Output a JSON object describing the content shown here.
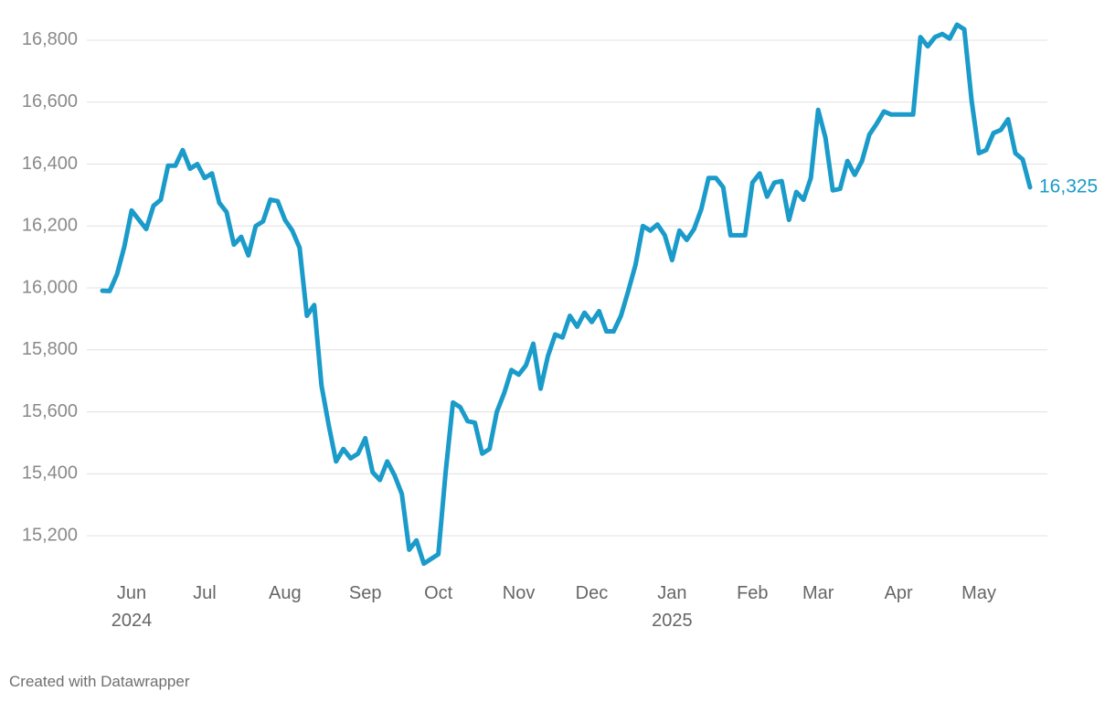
{
  "chart_data": {
    "type": "line",
    "color": "#1a9bc9",
    "grid": true,
    "source": "Created with Datawrapper",
    "ylim": [
      15100,
      16850
    ],
    "yticks": [
      {
        "value": 15200,
        "label": "15,200"
      },
      {
        "value": 15400,
        "label": "15,400"
      },
      {
        "value": 15600,
        "label": "15,600"
      },
      {
        "value": 15800,
        "label": "15,800"
      },
      {
        "value": 16000,
        "label": "16,000"
      },
      {
        "value": 16200,
        "label": "16,200"
      },
      {
        "value": 16400,
        "label": "16,400"
      },
      {
        "value": 16600,
        "label": "16,600"
      },
      {
        "value": 16800,
        "label": "16,800"
      }
    ],
    "categories": [
      null,
      null,
      null,
      null,
      "Jun 2024",
      null,
      null,
      null,
      null,
      null,
      null,
      null,
      null,
      null,
      "Jul",
      null,
      null,
      null,
      null,
      null,
      null,
      null,
      null,
      null,
      null,
      "Aug",
      null,
      null,
      null,
      null,
      null,
      null,
      null,
      null,
      null,
      null,
      "Sep",
      null,
      null,
      null,
      null,
      null,
      null,
      null,
      null,
      null,
      "Oct",
      null,
      null,
      null,
      null,
      null,
      null,
      null,
      null,
      null,
      null,
      "Nov",
      null,
      null,
      null,
      null,
      null,
      null,
      null,
      null,
      null,
      "Dec",
      null,
      null,
      null,
      null,
      null,
      null,
      null,
      null,
      null,
      null,
      "Jan 2025",
      null,
      null,
      null,
      null,
      null,
      null,
      null,
      null,
      null,
      null,
      "Feb",
      null,
      null,
      null,
      null,
      null,
      null,
      null,
      null,
      "Mar",
      null,
      null,
      null,
      null,
      null,
      null,
      null,
      null,
      null,
      null,
      "Apr",
      null,
      null,
      null,
      null,
      null,
      null,
      null,
      null,
      null,
      null,
      "May",
      null,
      null,
      null,
      null,
      null,
      null,
      null
    ],
    "values": [
      15991,
      15990,
      16044,
      16133,
      16250,
      16220,
      16190,
      16265,
      16285,
      16395,
      16395,
      16445,
      16385,
      16400,
      16355,
      16370,
      16275,
      16245,
      16140,
      16165,
      16105,
      16200,
      16215,
      16285,
      16280,
      16220,
      16185,
      16130,
      15910,
      15945,
      15685,
      15555,
      15440,
      15480,
      15450,
      15465,
      15515,
      15405,
      15380,
      15440,
      15395,
      15335,
      15155,
      15185,
      15110,
      15125,
      15140,
      15405,
      15630,
      15615,
      15570,
      15565,
      15465,
      15480,
      15600,
      15660,
      15735,
      15720,
      15750,
      15820,
      15675,
      15780,
      15850,
      15840,
      15910,
      15875,
      15920,
      15890,
      15925,
      15860,
      15860,
      15910,
      15990,
      16075,
      16200,
      16185,
      16205,
      16170,
      16090,
      16185,
      16155,
      16190,
      16255,
      16355,
      16355,
      16325,
      16170,
      16170,
      16170,
      16340,
      16370,
      16295,
      16340,
      16345,
      16220,
      16310,
      16285,
      16355,
      16575,
      16485,
      16315,
      16320,
      16410,
      16365,
      16410,
      16495,
      16530,
      16570,
      16560,
      16560,
      16560,
      16560,
      16810,
      16780,
      16810,
      16820,
      16805,
      16850,
      16835,
      16605,
      16435,
      16445,
      16500,
      16510,
      16545,
      16435,
      16415,
      16325
    ],
    "value_labels": [
      null,
      null,
      null,
      null,
      null,
      null,
      null,
      null,
      null,
      null,
      null,
      null,
      null,
      null,
      null,
      null,
      null,
      null,
      null,
      null,
      null,
      null,
      null,
      null,
      null,
      null,
      null,
      null,
      null,
      null,
      null,
      null,
      null,
      null,
      null,
      null,
      null,
      null,
      null,
      null,
      null,
      null,
      null,
      null,
      null,
      null,
      null,
      null,
      null,
      null,
      null,
      null,
      null,
      null,
      null,
      null,
      null,
      null,
      null,
      null,
      null,
      null,
      null,
      null,
      null,
      null,
      null,
      null,
      null,
      null,
      null,
      null,
      null,
      null,
      null,
      null,
      null,
      null,
      null,
      null,
      null,
      null,
      null,
      null,
      null,
      null,
      null,
      null,
      null,
      null,
      null,
      null,
      null,
      null,
      null,
      null,
      null,
      null,
      null,
      null,
      null,
      null,
      null,
      null,
      null,
      null,
      null,
      null,
      null,
      null,
      null,
      null,
      null,
      null,
      null,
      null,
      null,
      null,
      null,
      null,
      null,
      null,
      null,
      null,
      null,
      null,
      null,
      "16,325"
    ]
  }
}
